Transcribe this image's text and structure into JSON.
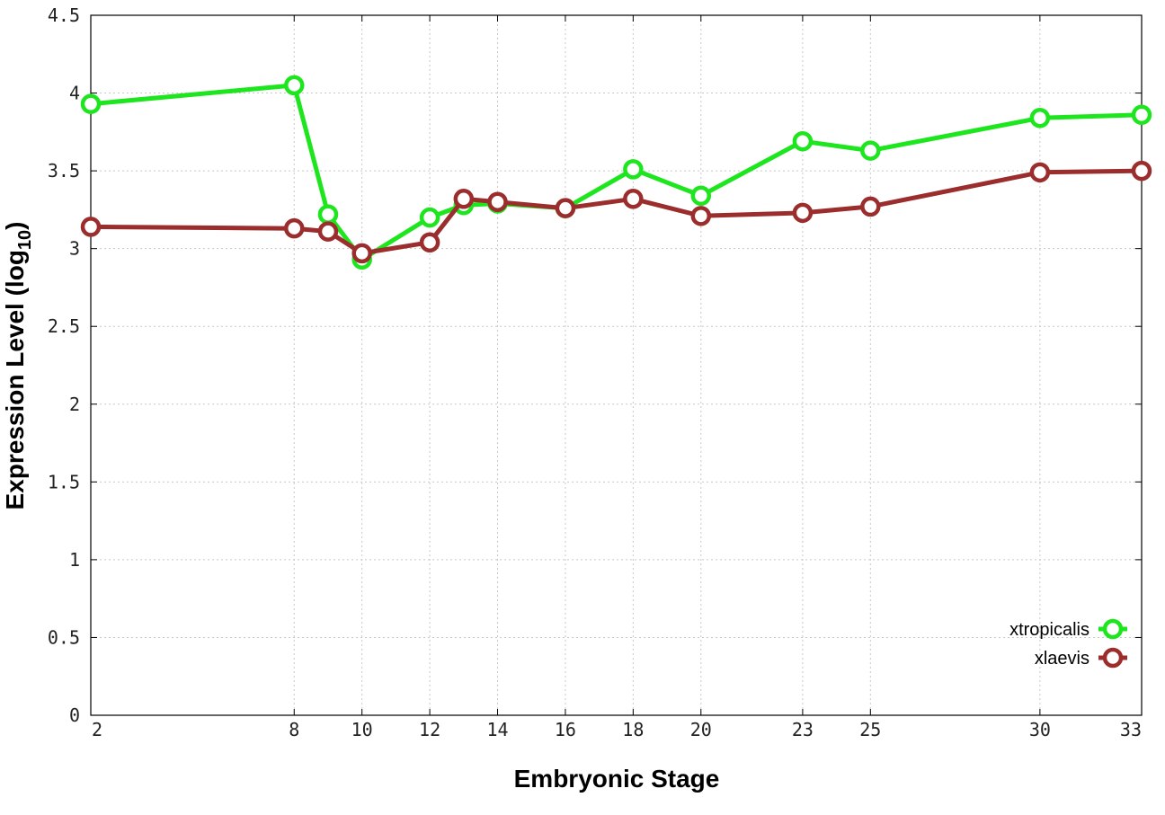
{
  "chart_data": {
    "type": "line",
    "xlabel": "Embryonic Stage",
    "ylabel_main": "Expression Level (log",
    "ylabel_sub": "10",
    "ylabel_close": ")",
    "ylim": [
      0,
      4.5
    ],
    "yticks": [
      "0",
      "0.5",
      "1",
      "1.5",
      "2",
      "2.5",
      "3",
      "3.5",
      "4",
      "4.5"
    ],
    "ytick_values": [
      0,
      0.5,
      1,
      1.5,
      2,
      2.5,
      3,
      3.5,
      4,
      4.5
    ],
    "x": [
      2,
      8,
      9,
      10,
      12,
      13,
      14,
      16,
      18,
      20,
      23,
      25,
      30,
      33
    ],
    "xticks": [
      "2",
      "8",
      "10",
      "12",
      "14",
      "16",
      "18",
      "20",
      "23",
      "25",
      "30",
      "33"
    ],
    "xtick_values": [
      2,
      8,
      10,
      12,
      14,
      16,
      18,
      20,
      23,
      25,
      30,
      33
    ],
    "xlim": [
      2,
      33
    ],
    "grid": true,
    "legend_position": "bottom-right",
    "series": [
      {
        "name": "xtropicalis",
        "color": "#1ee61e",
        "values": [
          3.93,
          4.05,
          3.22,
          2.93,
          3.2,
          3.28,
          3.29,
          3.26,
          3.51,
          3.34,
          3.69,
          3.63,
          3.84,
          3.86
        ]
      },
      {
        "name": "xlaevis",
        "color": "#9b2d2d",
        "values": [
          3.14,
          3.13,
          3.11,
          2.97,
          3.04,
          3.32,
          3.3,
          3.26,
          3.32,
          3.21,
          3.23,
          3.27,
          3.49,
          3.5
        ]
      }
    ]
  }
}
